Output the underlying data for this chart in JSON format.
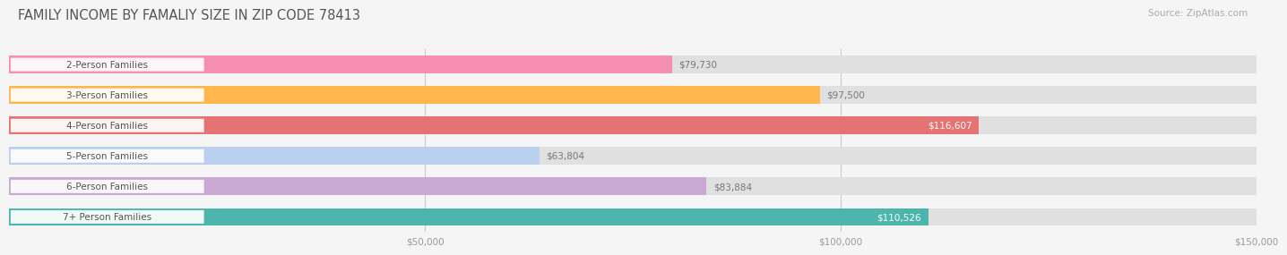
{
  "title": "FAMILY INCOME BY FAMALIY SIZE IN ZIP CODE 78413",
  "source": "Source: ZipAtlas.com",
  "categories": [
    "2-Person Families",
    "3-Person Families",
    "4-Person Families",
    "5-Person Families",
    "6-Person Families",
    "7+ Person Families"
  ],
  "values": [
    79730,
    97500,
    116607,
    63804,
    83884,
    110526
  ],
  "bar_colors": [
    "#F48FB1",
    "#FFB74D",
    "#E57373",
    "#BBCFEE",
    "#C9A8D4",
    "#4DB6AC"
  ],
  "value_on_bar": [
    false,
    false,
    true,
    false,
    false,
    true
  ],
  "value_colors_inside": [
    "white",
    "white",
    "white",
    "white",
    "white",
    "white"
  ],
  "value_colors_outside": [
    "#777777",
    "#777777",
    "#777777",
    "#777777",
    "#777777",
    "#777777"
  ],
  "xlim": [
    0,
    150000
  ],
  "xtick_labels": [
    "$50,000",
    "$100,000",
    "$150,000"
  ],
  "xtick_values": [
    50000,
    100000,
    150000
  ],
  "bg_color": "#f5f5f5",
  "bar_bg_color": "#e0e0e0",
  "title_fontsize": 10.5,
  "source_fontsize": 7.5,
  "label_fontsize": 7.5,
  "value_fontsize": 7.5
}
